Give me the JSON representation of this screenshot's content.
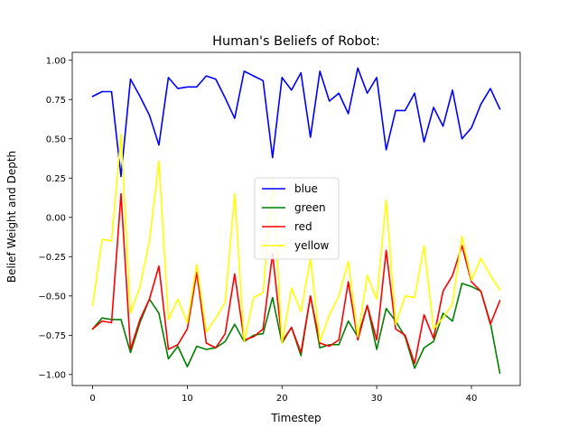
{
  "chart_data": {
    "type": "line",
    "title": "Human's Beliefs of Robot:",
    "xlabel": "Timestep",
    "ylabel": "Belief Weight and Depth",
    "xlim": [
      -2.15,
      45.15
    ],
    "ylim": [
      -1.07,
      1.05
    ],
    "xticks": [
      0,
      10,
      20,
      30,
      40
    ],
    "yticks": [
      -1.0,
      -0.75,
      -0.5,
      -0.25,
      0.0,
      0.25,
      0.5,
      0.75,
      1.0
    ],
    "ytick_labels": [
      "−1.00",
      "−0.75",
      "−0.50",
      "−0.25",
      "0.00",
      "0.25",
      "0.50",
      "0.75",
      "1.00"
    ],
    "grid": false,
    "legend_position": "center",
    "x": [
      0,
      1,
      2,
      3,
      4,
      5,
      6,
      7,
      8,
      9,
      10,
      11,
      12,
      13,
      14,
      15,
      16,
      17,
      18,
      19,
      20,
      21,
      22,
      23,
      24,
      25,
      26,
      27,
      28,
      29,
      30,
      31,
      32,
      33,
      34,
      35,
      36,
      37,
      38,
      39,
      40,
      41,
      42,
      43
    ],
    "series": [
      {
        "name": "blue",
        "color": "#0000ff",
        "values": [
          0.77,
          0.8,
          0.8,
          0.26,
          0.88,
          0.77,
          0.65,
          0.46,
          0.89,
          0.82,
          0.83,
          0.83,
          0.9,
          0.88,
          0.76,
          0.63,
          0.93,
          0.9,
          0.87,
          0.38,
          0.89,
          0.81,
          0.92,
          0.51,
          0.93,
          0.74,
          0.79,
          0.66,
          0.95,
          0.79,
          0.89,
          0.43,
          0.68,
          0.68,
          0.79,
          0.48,
          0.7,
          0.58,
          0.81,
          0.5,
          0.57,
          0.72,
          0.82,
          0.69
        ]
      },
      {
        "name": "green",
        "color": "#008000",
        "values": [
          -0.71,
          -0.64,
          -0.65,
          -0.65,
          -0.86,
          -0.67,
          -0.52,
          -0.61,
          -0.9,
          -0.82,
          -0.95,
          -0.82,
          -0.84,
          -0.83,
          -0.79,
          -0.68,
          -0.79,
          -0.75,
          -0.74,
          -0.51,
          -0.8,
          -0.7,
          -0.88,
          -0.5,
          -0.83,
          -0.81,
          -0.81,
          -0.66,
          -0.76,
          -0.56,
          -0.84,
          -0.58,
          -0.66,
          -0.76,
          -0.96,
          -0.83,
          -0.79,
          -0.61,
          -0.66,
          -0.42,
          -0.44,
          -0.47,
          -0.67,
          -0.99
        ]
      },
      {
        "name": "red",
        "color": "#ff0000",
        "values": [
          -0.71,
          -0.66,
          -0.67,
          0.15,
          -0.84,
          -0.65,
          -0.52,
          -0.31,
          -0.84,
          -0.81,
          -0.71,
          -0.35,
          -0.8,
          -0.83,
          -0.74,
          -0.36,
          -0.78,
          -0.76,
          -0.71,
          -0.23,
          -0.79,
          -0.7,
          -0.86,
          -0.5,
          -0.8,
          -0.82,
          -0.78,
          -0.41,
          -0.78,
          -0.56,
          -0.78,
          -0.21,
          -0.71,
          -0.75,
          -0.93,
          -0.62,
          -0.77,
          -0.47,
          -0.37,
          -0.18,
          -0.41,
          -0.47,
          -0.68,
          -0.53
        ]
      },
      {
        "name": "yellow",
        "color": "#ffff00",
        "values": [
          -0.56,
          -0.14,
          -0.15,
          0.53,
          -0.61,
          -0.44,
          -0.15,
          0.36,
          -0.65,
          -0.52,
          -0.67,
          -0.3,
          -0.73,
          -0.64,
          -0.54,
          0.15,
          -0.79,
          -0.51,
          -0.48,
          0.25,
          -0.8,
          -0.45,
          -0.6,
          -0.26,
          -0.79,
          -0.62,
          -0.5,
          -0.28,
          -0.76,
          -0.37,
          -0.52,
          0.11,
          -0.68,
          -0.5,
          -0.51,
          -0.18,
          -0.71,
          -0.64,
          -0.55,
          -0.12,
          -0.4,
          -0.26,
          -0.37,
          -0.46
        ]
      }
    ]
  }
}
